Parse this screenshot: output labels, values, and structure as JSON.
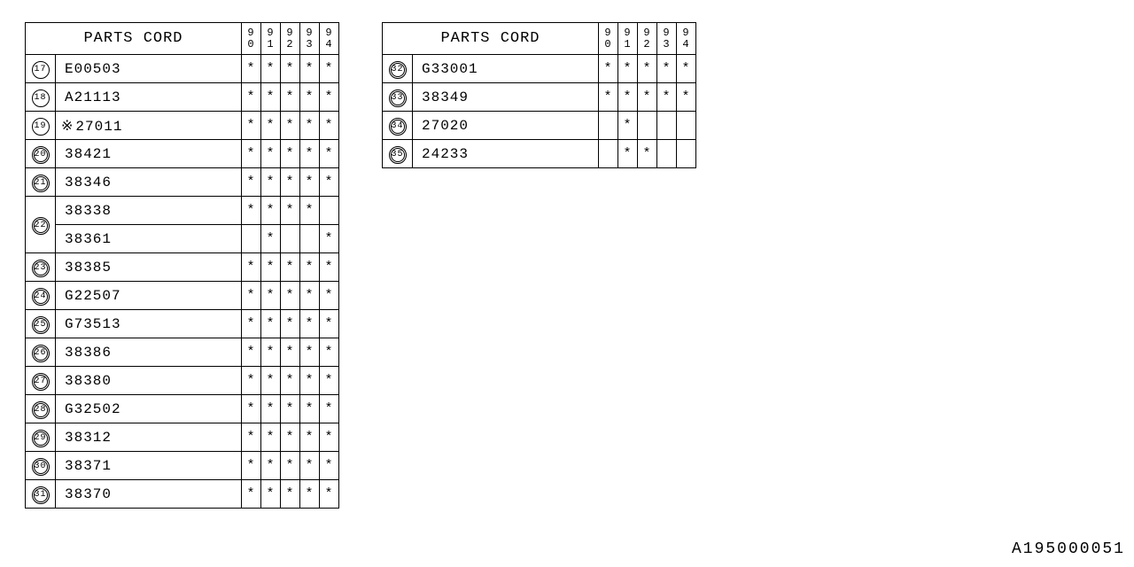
{
  "doc_id": "A195000051",
  "header": {
    "title": "PARTS CORD",
    "years": [
      "90",
      "91",
      "92",
      "93",
      "94"
    ]
  },
  "asterisk": "*",
  "table1": [
    {
      "num": "17",
      "dbl": false,
      "code": "E00503",
      "marks": [
        1,
        1,
        1,
        1,
        1
      ]
    },
    {
      "num": "18",
      "dbl": false,
      "code": "A21113",
      "marks": [
        1,
        1,
        1,
        1,
        1
      ]
    },
    {
      "num": "19",
      "dbl": false,
      "code": "27011",
      "prefix": "※",
      "marks": [
        1,
        1,
        1,
        1,
        1
      ]
    },
    {
      "num": "20",
      "dbl": true,
      "code": "38421",
      "marks": [
        1,
        1,
        1,
        1,
        1
      ]
    },
    {
      "num": "21",
      "dbl": true,
      "code": "38346",
      "marks": [
        1,
        1,
        1,
        1,
        1
      ]
    },
    {
      "num": "22",
      "dbl": true,
      "rowspan": 2,
      "code": "38338",
      "marks": [
        1,
        1,
        1,
        1,
        0
      ]
    },
    {
      "cont": true,
      "code": "38361",
      "marks": [
        0,
        1,
        0,
        0,
        1
      ]
    },
    {
      "num": "23",
      "dbl": true,
      "code": "38385",
      "marks": [
        1,
        1,
        1,
        1,
        1
      ]
    },
    {
      "num": "24",
      "dbl": true,
      "code": "G22507",
      "marks": [
        1,
        1,
        1,
        1,
        1
      ]
    },
    {
      "num": "25",
      "dbl": true,
      "code": "G73513",
      "marks": [
        1,
        1,
        1,
        1,
        1
      ]
    },
    {
      "num": "26",
      "dbl": true,
      "code": "38386",
      "marks": [
        1,
        1,
        1,
        1,
        1
      ]
    },
    {
      "num": "27",
      "dbl": true,
      "code": "38380",
      "marks": [
        1,
        1,
        1,
        1,
        1
      ]
    },
    {
      "num": "28",
      "dbl": true,
      "code": "G32502",
      "marks": [
        1,
        1,
        1,
        1,
        1
      ]
    },
    {
      "num": "29",
      "dbl": true,
      "code": "38312",
      "marks": [
        1,
        1,
        1,
        1,
        1
      ]
    },
    {
      "num": "30",
      "dbl": true,
      "code": "38371",
      "marks": [
        1,
        1,
        1,
        1,
        1
      ]
    },
    {
      "num": "31",
      "dbl": true,
      "code": "38370",
      "marks": [
        1,
        1,
        1,
        1,
        1
      ]
    }
  ],
  "table2": [
    {
      "num": "32",
      "dbl": true,
      "code": "G33001",
      "marks": [
        1,
        1,
        1,
        1,
        1
      ]
    },
    {
      "num": "33",
      "dbl": true,
      "code": "38349",
      "marks": [
        1,
        1,
        1,
        1,
        1
      ]
    },
    {
      "num": "34",
      "dbl": true,
      "code": "27020",
      "marks": [
        0,
        1,
        0,
        0,
        0
      ]
    },
    {
      "num": "35",
      "dbl": true,
      "code": "24233",
      "marks": [
        0,
        1,
        1,
        0,
        0
      ]
    }
  ]
}
